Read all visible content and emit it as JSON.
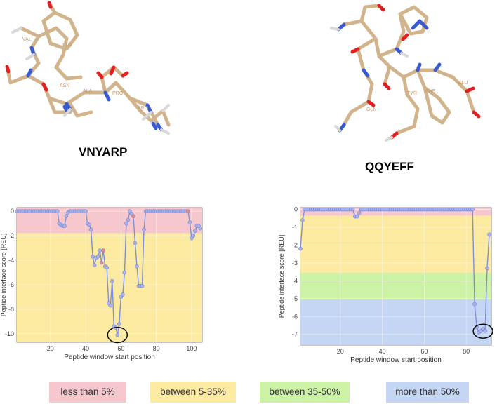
{
  "peptides": {
    "left": {
      "name": "VNYARP",
      "residues": [
        "VAL",
        "TYR",
        "ASN",
        "ALA",
        "PRO",
        "ARG"
      ]
    },
    "right": {
      "name": "QQYEFF",
      "residues": [
        "GLN",
        "TYR",
        "PHE",
        "GLU"
      ]
    }
  },
  "legend": [
    {
      "label": "less than 5%",
      "color": "#f6c8cd"
    },
    {
      "label": "between 5-35%",
      "color": "#fbeaa0"
    },
    {
      "label": "between 35-50%",
      "color": "#ccf2a6"
    },
    {
      "label": "more than 50%",
      "color": "#c5d5f4"
    }
  ],
  "chart_data": [
    {
      "type": "line",
      "ylabel": "Peptide interface score [REU]",
      "xlabel": "Peptide window start position",
      "xlim": [
        1,
        106
      ],
      "ylim": [
        -10.7,
        0.3
      ],
      "xticks": [
        20,
        40,
        60,
        80,
        100
      ],
      "yticks": [
        0,
        -2,
        -4,
        -6,
        -8,
        -10
      ],
      "bands": [
        {
          "from": 0.3,
          "to": -1.8,
          "color": "#f6c8cd"
        },
        {
          "from": -1.8,
          "to": -10.7,
          "color": "#fbeaa0"
        }
      ],
      "marker_color": "#a9b2ea",
      "highlight_color": "#e88585",
      "series": [
        {
          "x": [
            1,
            2,
            3,
            4,
            5,
            6,
            7,
            8,
            9,
            10,
            11,
            12,
            13,
            14,
            15,
            16,
            17,
            18,
            19,
            20,
            21,
            22,
            23,
            24,
            25,
            26,
            27,
            28,
            29,
            30,
            31,
            32,
            33,
            34,
            35,
            36,
            37,
            38,
            39,
            40,
            41,
            42,
            43,
            44,
            45,
            46,
            47,
            48,
            49,
            50,
            51,
            52,
            53,
            54,
            55,
            56,
            57,
            58,
            59,
            60,
            61,
            62,
            63,
            64,
            65,
            66,
            67,
            68,
            69,
            70,
            71,
            72,
            73,
            74,
            75,
            76,
            77,
            78,
            79,
            80,
            81,
            82,
            83,
            84,
            85,
            86,
            87,
            88,
            89,
            90,
            91,
            92,
            93,
            94,
            95,
            96,
            97,
            98,
            99,
            100,
            101,
            102,
            103,
            104,
            105
          ],
          "y": [
            0,
            0,
            0,
            0,
            0,
            0,
            0,
            0,
            0,
            0,
            0,
            0,
            0,
            0,
            0,
            0,
            0,
            0,
            0,
            0,
            0,
            0,
            0,
            0,
            -1,
            -1.1,
            -1.2,
            -1.2,
            -0.4,
            -0.1,
            0,
            0,
            0,
            0,
            0,
            0,
            0,
            0,
            0,
            0,
            -1,
            -1.1,
            -1.5,
            -3.7,
            -4.4,
            -3.8,
            -3.7,
            -3.2,
            -4.2,
            -3.2,
            -4.5,
            -4.6,
            -7.5,
            -7.7,
            -5.7,
            -9.4,
            -9.5,
            -10.1,
            -9.2,
            -7,
            -6.8,
            -5,
            -1,
            -0.7,
            0,
            -0.2,
            -0.4,
            -2.6,
            -4.5,
            -6.1,
            -6.1,
            -6.1,
            -1.5,
            0,
            0,
            0,
            0,
            0,
            0,
            0,
            0,
            0,
            0,
            0,
            0,
            0,
            0,
            0,
            0,
            0,
            0,
            0,
            0,
            0,
            0,
            0,
            0,
            0,
            -0.9,
            -2.2,
            -2,
            -1.6,
            -1.2,
            -1.2,
            -1.4
          ],
          "highlight_x": [
            49,
            50,
            67,
            98
          ]
        }
      ]
    },
    {
      "type": "line",
      "ylabel": "Peptide interface score [REU]",
      "xlabel": "Peptide window start position",
      "xlim": [
        1,
        92
      ],
      "ylim": [
        -7.6,
        0.1
      ],
      "xticks": [
        20,
        40,
        60,
        80
      ],
      "yticks": [
        0,
        -1,
        -2,
        -3,
        -4,
        -5,
        -6,
        -7
      ],
      "bands": [
        {
          "from": 0.1,
          "to": -0.35,
          "color": "#f6c8cd"
        },
        {
          "from": -0.35,
          "to": -3.55,
          "color": "#fbeaa0"
        },
        {
          "from": -3.55,
          "to": -5.05,
          "color": "#ccf2a6"
        },
        {
          "from": -5.05,
          "to": -7.6,
          "color": "#c5d5f4"
        }
      ],
      "marker_color": "#a9b2ea",
      "highlight_color": "#e88585",
      "series": [
        {
          "x": [
            1,
            2,
            3,
            4,
            5,
            6,
            7,
            8,
            9,
            10,
            11,
            12,
            13,
            14,
            15,
            16,
            17,
            18,
            19,
            20,
            21,
            22,
            23,
            24,
            25,
            26,
            27,
            28,
            29,
            30,
            31,
            32,
            33,
            34,
            35,
            36,
            37,
            38,
            39,
            40,
            41,
            42,
            43,
            44,
            45,
            46,
            47,
            48,
            49,
            50,
            51,
            52,
            53,
            54,
            55,
            56,
            57,
            58,
            59,
            60,
            61,
            62,
            63,
            64,
            65,
            66,
            67,
            68,
            69,
            70,
            71,
            72,
            73,
            74,
            75,
            76,
            77,
            78,
            79,
            80,
            81,
            82,
            83,
            84,
            85,
            86,
            87,
            88,
            89,
            90,
            91
          ],
          "y": [
            -2.2,
            -0.6,
            0,
            0,
            0,
            0,
            0,
            0,
            0,
            0,
            0,
            0,
            0,
            0,
            0,
            0,
            0,
            0,
            0,
            0,
            0,
            0,
            0,
            0,
            0,
            0,
            -0.4,
            -0.4,
            -0.2,
            0,
            0,
            0,
            0,
            0,
            0,
            0,
            0,
            0,
            0,
            0,
            0,
            0,
            0,
            0,
            0,
            0,
            0,
            0,
            0,
            0,
            0,
            0,
            0,
            0,
            0,
            0,
            0,
            0,
            0,
            0,
            0,
            0,
            0,
            0,
            0,
            0,
            0,
            0,
            0,
            0,
            0,
            0,
            0,
            0,
            0,
            0,
            0,
            0,
            0,
            0,
            0,
            0,
            0,
            -5.3,
            -6.6,
            -6.9,
            -6.8,
            -6.7,
            -6.8,
            -3.3,
            -1.4
          ],
          "highlight_x": []
        }
      ]
    }
  ]
}
